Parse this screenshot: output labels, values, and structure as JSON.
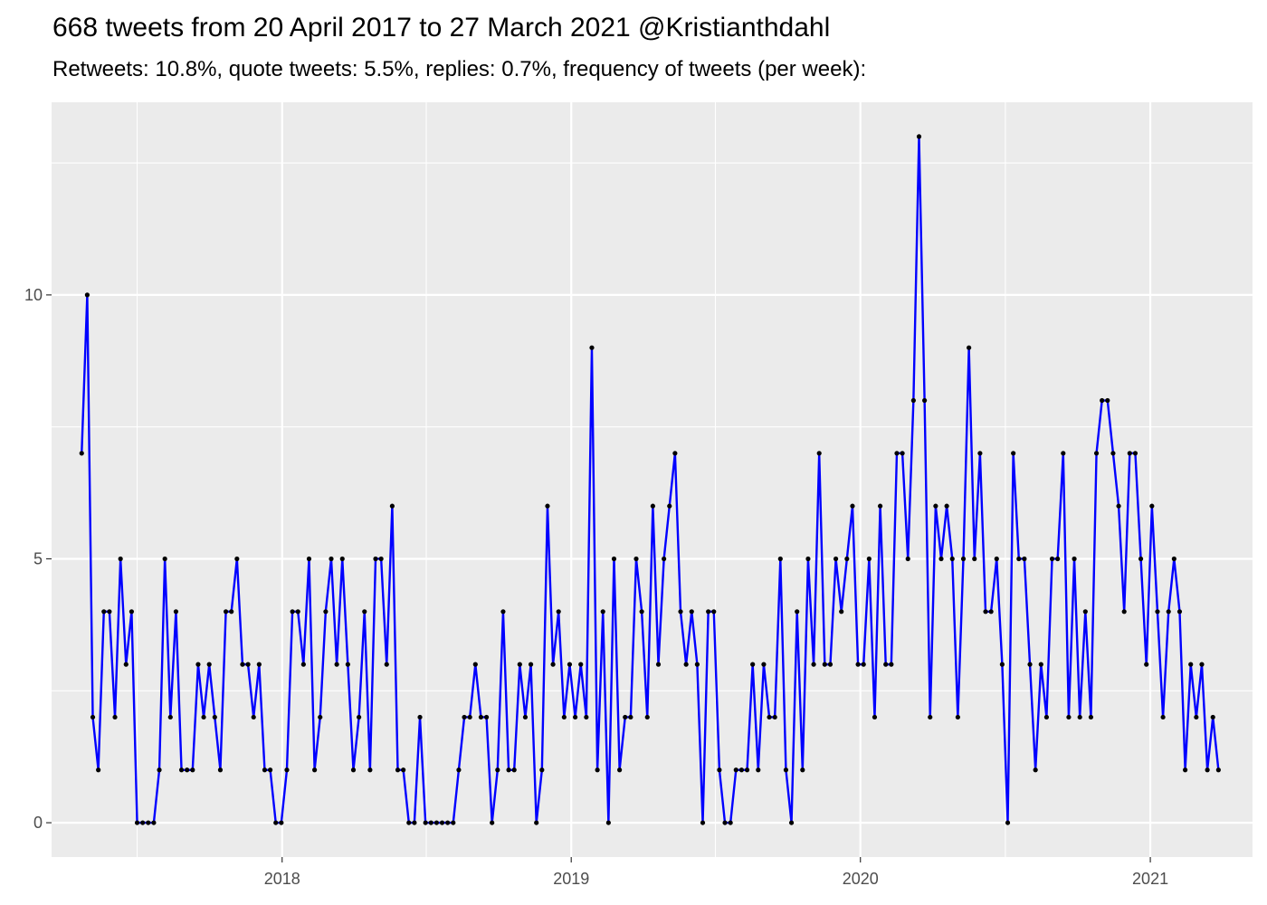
{
  "title": "668 tweets from 20 April 2017 to 27 March 2021 @Kristianthdahl",
  "subtitle": "Retweets: 10.8%, quote tweets: 5.5%, replies: 0.7%, frequency of tweets (per week):",
  "chart_data": {
    "type": "line",
    "title": "668 tweets from 20 April 2017 to 27 March 2021 @Kristianthdahl",
    "subtitle": "Retweets: 10.8%, quote tweets: 5.5%, replies: 0.7%, frequency of tweets (per week):",
    "x_start": "2017-04-23",
    "x_step_days": 7,
    "x_ticks": [
      "2018",
      "2019",
      "2020",
      "2021"
    ],
    "y_ticks": [
      0,
      5,
      10
    ],
    "xlim": [
      "2017-03-16",
      "2021-05-10"
    ],
    "ylim": [
      -0.65,
      13.65
    ],
    "grid": true,
    "line_color": "#0000ff",
    "point_color": "#000000",
    "panel_color": "#ebebeb",
    "values": [
      7,
      10,
      2,
      1,
      4,
      4,
      2,
      5,
      3,
      4,
      0,
      0,
      0,
      0,
      1,
      5,
      2,
      4,
      1,
      1,
      1,
      3,
      2,
      3,
      2,
      1,
      4,
      4,
      5,
      3,
      3,
      2,
      3,
      1,
      1,
      0,
      0,
      1,
      4,
      4,
      3,
      5,
      1,
      2,
      4,
      5,
      3,
      5,
      3,
      1,
      2,
      4,
      1,
      5,
      5,
      3,
      6,
      1,
      1,
      0,
      0,
      2,
      0,
      0,
      0,
      0,
      0,
      0,
      1,
      2,
      2,
      3,
      2,
      2,
      0,
      1,
      4,
      1,
      1,
      3,
      2,
      3,
      0,
      1,
      6,
      3,
      4,
      2,
      3,
      2,
      3,
      2,
      9,
      1,
      4,
      0,
      5,
      1,
      2,
      2,
      5,
      4,
      2,
      6,
      3,
      5,
      6,
      7,
      4,
      3,
      4,
      3,
      0,
      4,
      4,
      1,
      0,
      0,
      1,
      1,
      1,
      3,
      1,
      3,
      2,
      2,
      5,
      1,
      0,
      4,
      1,
      5,
      3,
      7,
      3,
      3,
      5,
      4,
      5,
      6,
      3,
      3,
      5,
      2,
      6,
      3,
      3,
      7,
      7,
      5,
      8,
      13,
      8,
      2,
      6,
      5,
      6,
      5,
      2,
      5,
      9,
      5,
      7,
      4,
      4,
      5,
      3,
      0,
      7,
      5,
      5,
      3,
      1,
      3,
      2,
      5,
      5,
      7,
      2,
      5,
      2,
      4,
      2,
      7,
      8,
      8,
      7,
      6,
      4,
      7,
      7,
      5,
      3,
      6,
      4,
      2,
      4,
      5,
      4,
      1,
      3,
      2,
      3,
      1,
      2,
      1
    ]
  }
}
